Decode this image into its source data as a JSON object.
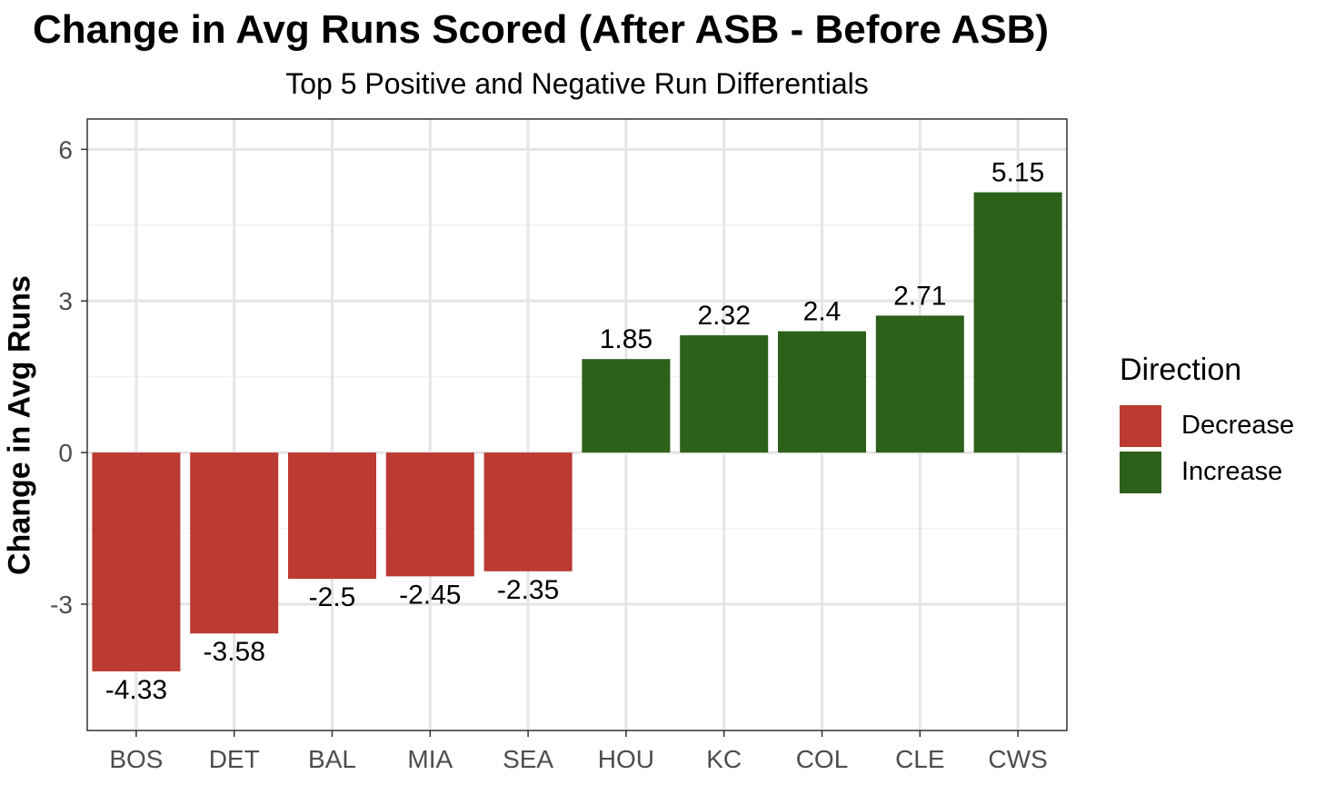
{
  "chart_data": {
    "type": "bar",
    "title": "Change in Avg Runs Scored (After ASB - Before ASB)",
    "subtitle": "Top 5 Positive and Negative Run Differentials",
    "xlabel": "",
    "ylabel": "Change in Avg Runs",
    "categories": [
      "BOS",
      "DET",
      "BAL",
      "MIA",
      "SEA",
      "HOU",
      "KC",
      "COL",
      "CLE",
      "CWS"
    ],
    "values": [
      -4.33,
      -3.58,
      -2.5,
      -2.45,
      -2.35,
      1.85,
      2.32,
      2.4,
      2.71,
      5.15
    ],
    "value_labels": [
      "-4.33",
      "-3.58",
      "-2.5",
      "-2.45",
      "-2.35",
      "1.85",
      "2.32",
      "2.4",
      "2.71",
      "5.15"
    ],
    "direction": [
      "Decrease",
      "Decrease",
      "Decrease",
      "Decrease",
      "Decrease",
      "Increase",
      "Increase",
      "Increase",
      "Increase",
      "Increase"
    ],
    "yticks": [
      -3,
      0,
      3,
      6
    ],
    "ytick_labels": [
      "-3",
      "0",
      "3",
      "6"
    ],
    "ylim": [
      -5.5,
      6.6
    ],
    "grid": true,
    "legend": {
      "title": "Direction",
      "placement": "right",
      "entries": [
        {
          "label": "Decrease",
          "color": "#bb3a31"
        },
        {
          "label": "Increase",
          "color": "#2c6119"
        }
      ]
    }
  }
}
